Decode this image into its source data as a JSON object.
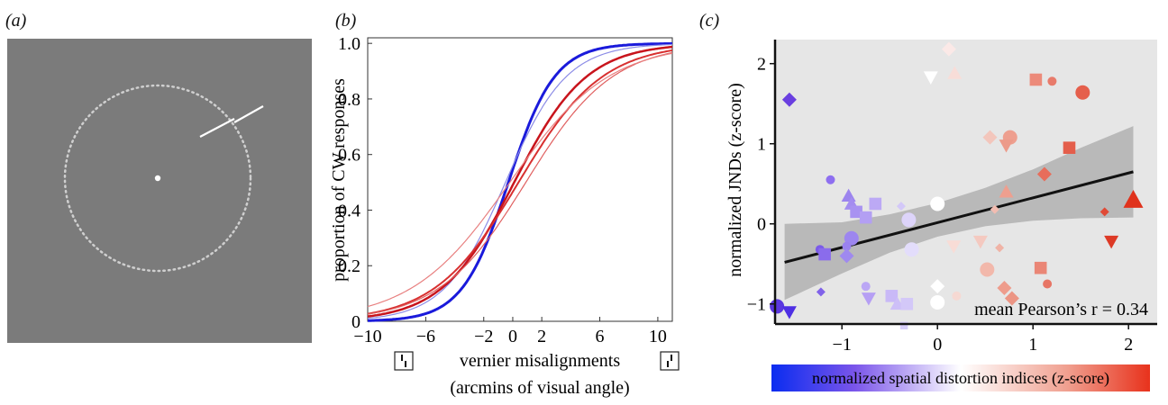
{
  "panel_labels": {
    "a": "(a)",
    "b": "(b)",
    "c": "(c)"
  },
  "colors": {
    "stimulus_bg": "#7b7b7b",
    "blue": "#1a1adb",
    "red": "#d61e1e",
    "light_blue": "#8c8ce6",
    "light_red": "#e88080",
    "band": "#b9b9b9",
    "plot_bg": "#e6e6e6"
  },
  "chart_data": [
    {
      "type": "line",
      "panel": "b",
      "ylabel": "proportion of CW responses",
      "xlabel_line1": "vernier misalignments",
      "xlabel_line2": "(arcmins of visual angle)",
      "xlim": [
        -10,
        11
      ],
      "ylim": [
        0,
        1.02
      ],
      "x_ticks": [
        -10,
        -6,
        -2,
        0,
        2,
        6,
        10
      ],
      "x_tick_labels": [
        "−10",
        "−6",
        "−2",
        "0",
        "2",
        "6",
        "10"
      ],
      "y_ticks": [
        0,
        0.2,
        0.4,
        0.6,
        0.8,
        1.0
      ],
      "y_tick_labels": [
        "0",
        "0.2",
        "0.4",
        "0.6",
        "0.8",
        "1.0"
      ],
      "series": [
        {
          "mu": -0.3,
          "sigma": 1.6,
          "color": "#1a1adb",
          "width": 3
        },
        {
          "mu": -0.5,
          "sigma": 2.1,
          "color": "#8c8ce6",
          "width": 1.2
        },
        {
          "mu": 0.1,
          "sigma": 2.5,
          "color": "#c8141c",
          "width": 2.5
        },
        {
          "mu": 0.4,
          "sigma": 2.9,
          "color": "#d83030",
          "width": 2
        },
        {
          "mu": 0.9,
          "sigma": 3.0,
          "color": "#e06060",
          "width": 1.2
        },
        {
          "mu": -0.2,
          "sigma": 3.4,
          "color": "#e88080",
          "width": 1.2
        }
      ]
    },
    {
      "type": "scatter",
      "panel": "c",
      "ylabel": "normalized JNDs (z-score)",
      "xlim": [
        -1.7,
        2.3
      ],
      "ylim": [
        -1.25,
        2.3
      ],
      "x_ticks": [
        -1,
        0,
        1,
        2
      ],
      "x_tick_labels": [
        "−1",
        "0",
        "1",
        "2"
      ],
      "y_ticks": [
        -1,
        0,
        1,
        2
      ],
      "y_tick_labels": [
        "−1",
        "0",
        "1",
        "2"
      ],
      "annotation": "mean Pearson’s r = 0.34",
      "colorbar_label": "normalized spatial distortion indices (z-score)",
      "fit_line": {
        "x": [
          -1.6,
          2.05
        ],
        "y": [
          -0.48,
          0.65
        ]
      },
      "confidence_band": {
        "x": [
          -1.6,
          -1.0,
          -0.5,
          0.0,
          0.5,
          1.0,
          1.5,
          2.05
        ],
        "upper": [
          0.0,
          0.02,
          0.12,
          0.26,
          0.45,
          0.68,
          0.95,
          1.22
        ],
        "lower": [
          -0.95,
          -0.62,
          -0.36,
          -0.16,
          -0.03,
          0.04,
          0.07,
          0.08
        ]
      },
      "points": [
        {
          "x": -1.55,
          "y": 1.55,
          "shape": "diamond",
          "size": "m",
          "color": "#6a3fe0"
        },
        {
          "x": -1.68,
          "y": -1.03,
          "shape": "circle",
          "size": "m",
          "color": "#5b37e0"
        },
        {
          "x": -1.55,
          "y": -1.1,
          "shape": "triangle_down",
          "size": "m",
          "color": "#4e2fe4"
        },
        {
          "x": -1.12,
          "y": 0.55,
          "shape": "circle",
          "size": "s",
          "color": "#8e6ff0"
        },
        {
          "x": -1.23,
          "y": -0.32,
          "shape": "circle",
          "size": "s",
          "color": "#7b5ae9"
        },
        {
          "x": -1.18,
          "y": -0.38,
          "shape": "square",
          "size": "m",
          "color": "#8a6cec"
        },
        {
          "x": -1.22,
          "y": -0.85,
          "shape": "diamond",
          "size": "s",
          "color": "#8062e9"
        },
        {
          "x": -0.93,
          "y": 0.35,
          "shape": "triangle",
          "size": "m",
          "color": "#9c84ee"
        },
        {
          "x": -0.9,
          "y": 0.25,
          "shape": "triangle",
          "size": "m",
          "color": "#a48df0"
        },
        {
          "x": -0.85,
          "y": 0.15,
          "shape": "square",
          "size": "m",
          "color": "#a892f1"
        },
        {
          "x": -0.75,
          "y": 0.08,
          "shape": "square",
          "size": "m",
          "color": "#b39ff3"
        },
        {
          "x": -0.9,
          "y": -0.18,
          "shape": "circle",
          "size": "m",
          "color": "#9d86ef"
        },
        {
          "x": -0.95,
          "y": -0.28,
          "shape": "circle",
          "size": "s",
          "color": "#9a82ee"
        },
        {
          "x": -0.95,
          "y": -0.4,
          "shape": "diamond",
          "size": "m",
          "color": "#9f89ef"
        },
        {
          "x": -0.65,
          "y": 0.25,
          "shape": "square",
          "size": "m",
          "color": "#bca9f5"
        },
        {
          "x": -0.75,
          "y": -0.78,
          "shape": "circle",
          "size": "s",
          "color": "#bba7f5"
        },
        {
          "x": -0.72,
          "y": -0.93,
          "shape": "triangle_down",
          "size": "m",
          "color": "#b69ff4"
        },
        {
          "x": -0.48,
          "y": -0.9,
          "shape": "square",
          "size": "m",
          "color": "#c9b9f7"
        },
        {
          "x": -0.42,
          "y": -1.0,
          "shape": "triangle",
          "size": "m",
          "color": "#cdbff7"
        },
        {
          "x": -0.32,
          "y": -1.0,
          "shape": "square",
          "size": "m",
          "color": "#d3c8f8"
        },
        {
          "x": -0.35,
          "y": -1.27,
          "shape": "square",
          "size": "s",
          "color": "#d8cffa"
        },
        {
          "x": -0.38,
          "y": 0.22,
          "shape": "diamond",
          "size": "s",
          "color": "#d3c8f8"
        },
        {
          "x": -0.3,
          "y": 0.05,
          "shape": "circle",
          "size": "m",
          "color": "#ddd4fa"
        },
        {
          "x": -0.27,
          "y": -0.32,
          "shape": "circle",
          "size": "m",
          "color": "#e3ddfb"
        },
        {
          "x": -0.07,
          "y": 1.83,
          "shape": "triangle_down",
          "size": "m",
          "color": "#ffffff"
        },
        {
          "x": 0.0,
          "y": 0.25,
          "shape": "circle",
          "size": "m",
          "color": "#ffffff"
        },
        {
          "x": 0.0,
          "y": -0.78,
          "shape": "diamond",
          "size": "m",
          "color": "#ffffff"
        },
        {
          "x": 0.0,
          "y": -0.98,
          "shape": "circle",
          "size": "m",
          "color": "#ffffff"
        },
        {
          "x": 0.12,
          "y": 2.18,
          "shape": "diamond",
          "size": "m",
          "color": "#fbe9e7"
        },
        {
          "x": 0.18,
          "y": 1.88,
          "shape": "triangle",
          "size": "m",
          "color": "#f8ddd8"
        },
        {
          "x": 0.2,
          "y": -0.9,
          "shape": "circle",
          "size": "s",
          "color": "#f6d9d3"
        },
        {
          "x": 0.17,
          "y": -0.28,
          "shape": "triangle_down",
          "size": "m",
          "color": "#f8dcd6"
        },
        {
          "x": 0.55,
          "y": 1.08,
          "shape": "diamond",
          "size": "m",
          "color": "#f3c6bc"
        },
        {
          "x": 0.45,
          "y": -0.22,
          "shape": "triangle_down",
          "size": "m",
          "color": "#f4c9c0"
        },
        {
          "x": 0.6,
          "y": 0.18,
          "shape": "diamond",
          "size": "s",
          "color": "#f2bcb1"
        },
        {
          "x": 0.65,
          "y": -0.3,
          "shape": "diamond",
          "size": "s",
          "color": "#f0b3a6"
        },
        {
          "x": 0.52,
          "y": -0.57,
          "shape": "circle",
          "size": "m",
          "color": "#f2b8ab"
        },
        {
          "x": 0.76,
          "y": 1.08,
          "shape": "circle",
          "size": "m",
          "color": "#ee9f8f"
        },
        {
          "x": 0.72,
          "y": 0.98,
          "shape": "triangle_down",
          "size": "m",
          "color": "#ec9a89"
        },
        {
          "x": 0.72,
          "y": 0.4,
          "shape": "triangle",
          "size": "m",
          "color": "#ee9f8f"
        },
        {
          "x": 0.7,
          "y": -0.8,
          "shape": "diamond",
          "size": "m",
          "color": "#ee9c8c"
        },
        {
          "x": 0.78,
          "y": -0.93,
          "shape": "diamond",
          "size": "m",
          "color": "#ec9584"
        },
        {
          "x": 1.03,
          "y": 1.8,
          "shape": "square",
          "size": "m",
          "color": "#ec8a7a"
        },
        {
          "x": 1.2,
          "y": 1.78,
          "shape": "circle",
          "size": "s",
          "color": "#e87b6b"
        },
        {
          "x": 1.08,
          "y": -0.55,
          "shape": "square",
          "size": "m",
          "color": "#ea8676"
        },
        {
          "x": 1.15,
          "y": -0.75,
          "shape": "circle",
          "size": "s",
          "color": "#e77565"
        },
        {
          "x": 1.12,
          "y": 0.62,
          "shape": "diamond",
          "size": "m",
          "color": "#e76d5b"
        },
        {
          "x": 1.38,
          "y": 0.95,
          "shape": "square",
          "size": "m",
          "color": "#e45e4b"
        },
        {
          "x": 1.52,
          "y": 1.64,
          "shape": "circle",
          "size": "m",
          "color": "#e55f4c"
        },
        {
          "x": 1.75,
          "y": 0.15,
          "shape": "diamond",
          "size": "s",
          "color": "#e04a36"
        },
        {
          "x": 1.82,
          "y": -0.22,
          "shape": "triangle_down",
          "size": "m",
          "color": "#dd3a26"
        },
        {
          "x": 2.05,
          "y": 0.3,
          "shape": "triangle",
          "size": "l",
          "color": "#e0321c"
        }
      ]
    }
  ]
}
